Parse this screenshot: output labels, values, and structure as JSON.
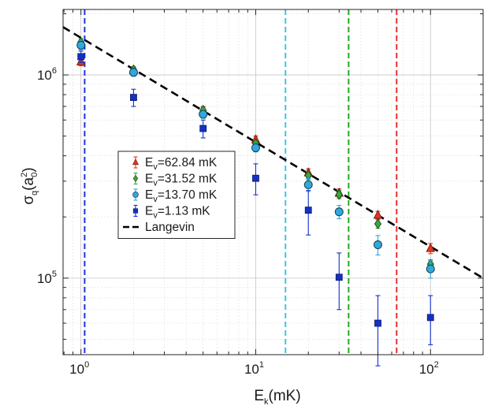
{
  "chart_data": {
    "type": "scatter",
    "xlabel": "E",
    "xlabel_sub": "k",
    "xlabel_unit": "(mK)",
    "ylabel": "σ",
    "ylabel_sub": "q",
    "ylabel_unit_base": "a",
    "ylabel_unit_sup": "2",
    "ylabel_unit_sub": "0",
    "x_scale": "log",
    "y_scale": "log",
    "xlim": [
      0.79,
      200
    ],
    "ylim": [
      42000,
      2100000
    ],
    "grid": true,
    "legend_position": "center-left",
    "x_ticks": [
      {
        "value": 1,
        "base": "10",
        "exp": "0"
      },
      {
        "value": 10,
        "base": "10",
        "exp": "1"
      },
      {
        "value": 100,
        "base": "10",
        "exp": "2"
      }
    ],
    "y_ticks": [
      {
        "value": 100000,
        "base": "10",
        "exp": "5"
      },
      {
        "value": 1000000,
        "base": "10",
        "exp": "6"
      }
    ],
    "series": [
      {
        "name_prefix": "E",
        "name_sub": "v",
        "name_suffix": "=62.84 mK",
        "marker": "triangle",
        "color": "#e8341c",
        "edge": "#6b1a0e",
        "points": [
          {
            "x": 1,
            "y": 1160000,
            "lo": 1110000,
            "hi": 1210000
          },
          {
            "x": 2,
            "y": 1050000,
            "lo": 1010000,
            "hi": 1090000
          },
          {
            "x": 5,
            "y": 670000,
            "lo": 640000,
            "hi": 700000
          },
          {
            "x": 10,
            "y": 480000,
            "lo": 460000,
            "hi": 500000
          },
          {
            "x": 20,
            "y": 330000,
            "lo": 315000,
            "hi": 345000
          },
          {
            "x": 30,
            "y": 262000,
            "lo": 250000,
            "hi": 275000
          },
          {
            "x": 50,
            "y": 204000,
            "lo": 195000,
            "hi": 213000
          },
          {
            "x": 100,
            "y": 140000,
            "lo": 132000,
            "hi": 148000
          }
        ]
      },
      {
        "name_prefix": "E",
        "name_sub": "v",
        "name_suffix": "=31.52 mK",
        "marker": "diamond",
        "color": "#3aa83a",
        "edge": "#1f3f1f",
        "points": [
          {
            "x": 1,
            "y": 1450000,
            "lo": 1390000,
            "hi": 1510000
          },
          {
            "x": 2,
            "y": 1060000,
            "lo": 1020000,
            "hi": 1100000
          },
          {
            "x": 5,
            "y": 670000,
            "lo": 645000,
            "hi": 695000
          },
          {
            "x": 10,
            "y": 460000,
            "lo": 440000,
            "hi": 480000
          },
          {
            "x": 20,
            "y": 320000,
            "lo": 305000,
            "hi": 335000
          },
          {
            "x": 30,
            "y": 258000,
            "lo": 246000,
            "hi": 270000
          },
          {
            "x": 50,
            "y": 185000,
            "lo": 176000,
            "hi": 194000
          },
          {
            "x": 100,
            "y": 117000,
            "lo": 111000,
            "hi": 123000
          }
        ]
      },
      {
        "name_prefix": "E",
        "name_sub": "v",
        "name_suffix": "=13.70 mK",
        "marker": "circle",
        "color": "#2fa9dc",
        "edge": "#12354a",
        "points": [
          {
            "x": 1,
            "y": 1400000,
            "lo": 1330000,
            "hi": 1470000
          },
          {
            "x": 2,
            "y": 1030000,
            "lo": 985000,
            "hi": 1075000
          },
          {
            "x": 5,
            "y": 640000,
            "lo": 612000,
            "hi": 668000
          },
          {
            "x": 10,
            "y": 438000,
            "lo": 418000,
            "hi": 458000
          },
          {
            "x": 20,
            "y": 288000,
            "lo": 267000,
            "hi": 309000
          },
          {
            "x": 30,
            "y": 212000,
            "lo": 196000,
            "hi": 228000
          },
          {
            "x": 50,
            "y": 146000,
            "lo": 130000,
            "hi": 162000
          },
          {
            "x": 100,
            "y": 111000,
            "lo": 100000,
            "hi": 122000
          }
        ]
      },
      {
        "name_prefix": "E",
        "name_sub": "v",
        "name_suffix": "=1.13 mK",
        "marker": "square",
        "color": "#1530c8",
        "edge": "#0b1a66",
        "points": [
          {
            "x": 1,
            "y": 1230000,
            "lo": 1150000,
            "hi": 1310000
          },
          {
            "x": 2,
            "y": 775000,
            "lo": 700000,
            "hi": 850000
          },
          {
            "x": 5,
            "y": 545000,
            "lo": 490000,
            "hi": 600000
          },
          {
            "x": 10,
            "y": 310000,
            "lo": 257000,
            "hi": 365000
          },
          {
            "x": 20,
            "y": 216000,
            "lo": 163000,
            "hi": 270000
          },
          {
            "x": 30,
            "y": 101000,
            "lo": 70000,
            "hi": 133000
          },
          {
            "x": 50,
            "y": 60000,
            "lo": 37000,
            "hi": 82000
          },
          {
            "x": 100,
            "y": 64000,
            "lo": 47000,
            "hi": 82000
          }
        ]
      }
    ],
    "langevin": {
      "name": "Langevin",
      "color": "#000000",
      "from": {
        "x": 0.79,
        "y": 1720000
      },
      "to": {
        "x": 200,
        "y": 100000
      }
    },
    "vlines": [
      {
        "x": 1.05,
        "color": "#2233dd"
      },
      {
        "x": 14.8,
        "color": "#3cc6e6"
      },
      {
        "x": 34,
        "color": "#22aa22"
      },
      {
        "x": 64,
        "color": "#e83030"
      }
    ]
  }
}
